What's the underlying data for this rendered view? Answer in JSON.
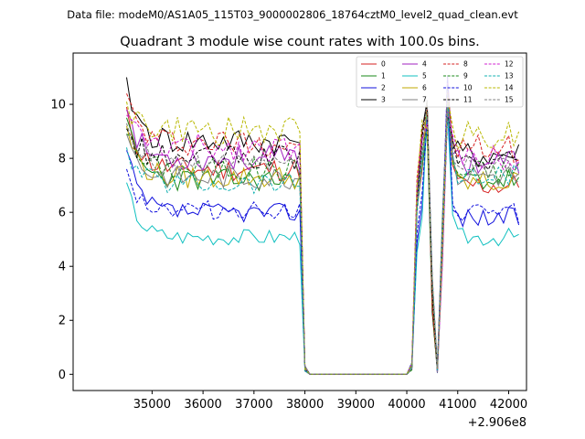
{
  "chart_data": {
    "type": "line",
    "suptitle": "Data file: modeM0/AS1A05_115T03_9000002806_18764cztM0_level2_quad_clean.evt",
    "title": "Quadrant 3 module wise count rates with 100.0s bins.",
    "xlabel": "",
    "ylabel": "",
    "x_offset_label": "+2.906e8",
    "xlim": [
      33450,
      42350
    ],
    "ylim": [
      -0.6,
      11.9
    ],
    "xticks": [
      35000,
      36000,
      37000,
      38000,
      39000,
      40000,
      41000,
      42000
    ],
    "xtick_labels": [
      "35000",
      "36000",
      "37000",
      "38000",
      "39000",
      "40000",
      "41000",
      "42000"
    ],
    "yticks": [
      0,
      2,
      4,
      6,
      8,
      10
    ],
    "ytick_labels": [
      "0",
      "2",
      "4",
      "6",
      "8",
      "10"
    ],
    "grid": false,
    "legend_position": "top-right",
    "segments": [
      {
        "name": "start",
        "x_start": 34500,
        "x_end": 37900,
        "step": 100
      },
      {
        "name": "flat",
        "x_start": 38000,
        "x_end": 40000,
        "step": 100
      },
      {
        "name": "end",
        "x_start": 40100,
        "x_end": 42200,
        "step": 100
      }
    ],
    "series": [
      {
        "name": "0",
        "color": "#d62020",
        "dash": "solid",
        "start_first": 9.9,
        "start_level": 7.6,
        "end_level": 7.0,
        "seed": 11
      },
      {
        "name": "1",
        "color": "#1a8a1a",
        "dash": "solid",
        "start_first": 9.5,
        "start_level": 7.2,
        "end_level": 7.2,
        "seed": 23
      },
      {
        "name": "2",
        "color": "#1010dd",
        "dash": "solid",
        "start_first": 8.3,
        "start_level": 6.0,
        "end_level": 5.8,
        "seed": 37
      },
      {
        "name": "3",
        "color": "#000000",
        "dash": "solid",
        "start_first": 11.0,
        "start_level": 8.6,
        "end_level": 8.1,
        "seed": 41
      },
      {
        "name": "4",
        "color": "#a020c0",
        "dash": "solid",
        "start_first": 9.8,
        "start_level": 8.0,
        "end_level": 7.9,
        "seed": 53
      },
      {
        "name": "5",
        "color": "#10c0c0",
        "dash": "solid",
        "start_first": 7.1,
        "start_level": 5.1,
        "end_level": 5.1,
        "seed": 67
      },
      {
        "name": "6",
        "color": "#c0a800",
        "dash": "solid",
        "start_first": 9.2,
        "start_level": 7.3,
        "end_level": 7.1,
        "seed": 79
      },
      {
        "name": "7",
        "color": "#808080",
        "dash": "solid",
        "start_first": 8.9,
        "start_level": 7.3,
        "end_level": 7.4,
        "seed": 83
      },
      {
        "name": "8",
        "color": "#d62020",
        "dash": "dashed",
        "start_first": 10.4,
        "start_level": 8.6,
        "end_level": 8.4,
        "seed": 97
      },
      {
        "name": "9",
        "color": "#1a8a1a",
        "dash": "dashed",
        "start_first": 8.9,
        "start_level": 7.6,
        "end_level": 7.5,
        "seed": 101
      },
      {
        "name": "10",
        "color": "#1010dd",
        "dash": "dashed",
        "start_first": 7.6,
        "start_level": 6.1,
        "end_level": 6.0,
        "seed": 113
      },
      {
        "name": "11",
        "color": "#000000",
        "dash": "dashed",
        "start_first": 9.1,
        "start_level": 8.0,
        "end_level": 7.9,
        "seed": 127
      },
      {
        "name": "12",
        "color": "#d020d0",
        "dash": "dashed",
        "start_first": 9.6,
        "start_level": 8.4,
        "end_level": 8.1,
        "seed": 131
      },
      {
        "name": "13",
        "color": "#10b0b0",
        "dash": "dashed",
        "start_first": 8.4,
        "start_level": 7.1,
        "end_level": 7.3,
        "seed": 139
      },
      {
        "name": "14",
        "color": "#b8b800",
        "dash": "dashed",
        "start_first": 10.1,
        "start_level": 9.0,
        "end_level": 8.9,
        "seed": 149
      },
      {
        "name": "15",
        "color": "#808080",
        "dash": "dashed",
        "start_first": 9.3,
        "start_level": 7.7,
        "end_level": 7.6,
        "seed": 157
      }
    ]
  }
}
